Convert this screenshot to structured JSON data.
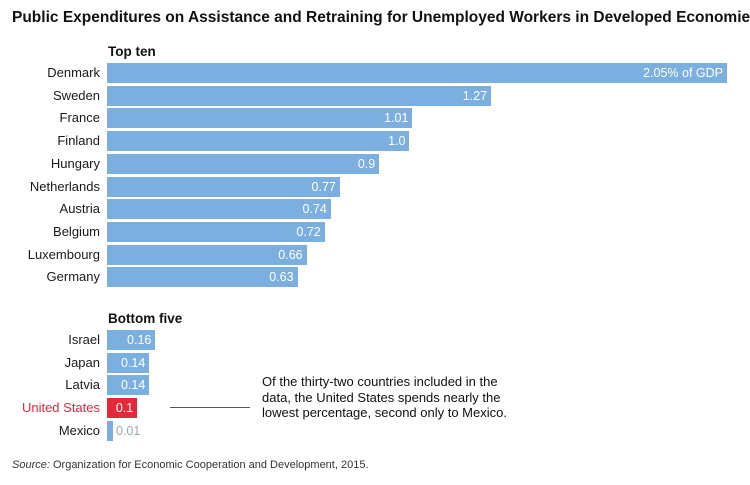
{
  "chart_data": {
    "type": "bar",
    "orientation": "horizontal",
    "title": "Public Expenditures on Assistance and Retraining for Unemployed Workers in Developed Economies",
    "unit_label": "% of GDP",
    "groups": [
      {
        "name": "Top ten",
        "categories": [
          "Denmark",
          "Sweden",
          "France",
          "Finland",
          "Hungary",
          "Netherlands",
          "Austria",
          "Belgium",
          "Luxembourg",
          "Germany"
        ],
        "values": [
          2.05,
          1.27,
          1.01,
          1.0,
          0.9,
          0.77,
          0.74,
          0.72,
          0.66,
          0.63
        ],
        "labels": [
          "2.05% of GDP",
          "1.27",
          "1.01",
          "1.0",
          "0.9",
          "0.77",
          "0.74",
          "0.72",
          "0.66",
          "0.63"
        ]
      },
      {
        "name": "Bottom five",
        "categories": [
          "Israel",
          "Japan",
          "Latvia",
          "United States",
          "Mexico"
        ],
        "values": [
          0.16,
          0.14,
          0.14,
          0.1,
          0.01
        ],
        "labels": [
          "0.16",
          "0.14",
          "0.14",
          "0.1",
          "0.01"
        ]
      }
    ],
    "highlight": "United States",
    "colors": {
      "bar": "#7aafdf",
      "highlight": "#e4293b",
      "outside_label": "#9aa7b4"
    },
    "annotation": "Of the thirty-two countries included in the data, the United States spends nearly the lowest percentage, second only to Mexico.",
    "source_prefix": "Source:",
    "source_text": " Organization for Economic Cooperation and Development, 2015."
  }
}
